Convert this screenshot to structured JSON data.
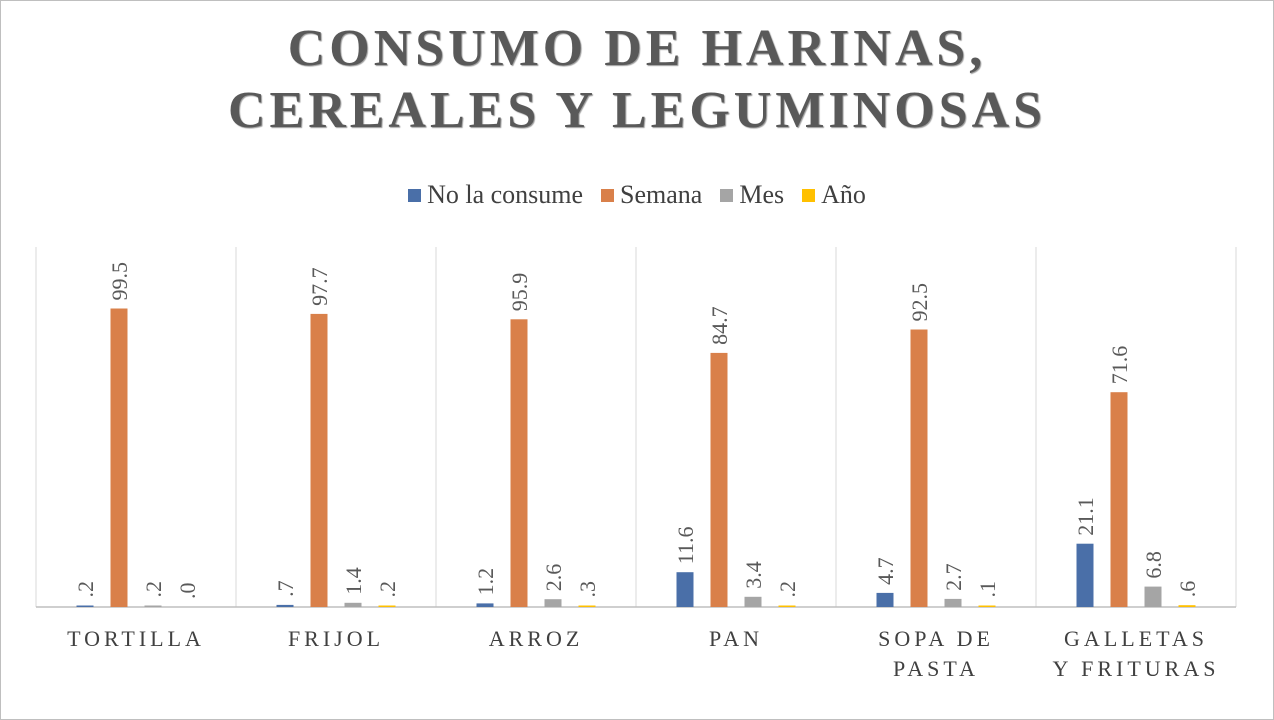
{
  "chart_data": {
    "type": "bar",
    "title": "CONSUMO DE HARINAS, CEREALES Y LEGUMINOSAS",
    "title_lines": [
      "CONSUMO DE HARINAS,",
      "CEREALES Y LEGUMINOSAS"
    ],
    "categories": [
      "TORTILLA",
      "FRIJOL",
      "ARROZ",
      "PAN",
      "SOPA DE PASTA",
      "GALLETAS Y FRITURAS"
    ],
    "category_lines": [
      [
        "TORTILLA"
      ],
      [
        "FRIJOL"
      ],
      [
        "ARROZ"
      ],
      [
        "PAN"
      ],
      [
        "SOPA DE",
        "PASTA"
      ],
      [
        "GALLETAS",
        "Y FRITURAS"
      ]
    ],
    "series": [
      {
        "name": "No la consume",
        "color": "#4a6fa8",
        "values": [
          0.2,
          0.7,
          1.2,
          11.6,
          4.7,
          21.1
        ],
        "labels": [
          ".2",
          ".7",
          "1.2",
          "11.6",
          "4.7",
          "21.1"
        ]
      },
      {
        "name": "Semana",
        "color": "#d9804a",
        "values": [
          99.5,
          97.7,
          95.9,
          84.7,
          92.5,
          71.6
        ],
        "labels": [
          "99.5",
          "97.7",
          "95.9",
          "84.7",
          "92.5",
          "71.6"
        ]
      },
      {
        "name": "Mes",
        "color": "#a5a5a5",
        "values": [
          0.2,
          1.4,
          2.6,
          3.4,
          2.7,
          6.8
        ],
        "labels": [
          ".2",
          "1.4",
          "2.6",
          "3.4",
          "2.7",
          "6.8"
        ]
      },
      {
        "name": "Año",
        "color": "#ffc000",
        "values": [
          0.0,
          0.2,
          0.3,
          0.2,
          0.1,
          0.6
        ],
        "labels": [
          ".0",
          ".2",
          ".3",
          ".2",
          ".1",
          ".6"
        ]
      }
    ],
    "ylim": [
      0,
      120
    ],
    "legend_position": "top",
    "grid": false
  }
}
